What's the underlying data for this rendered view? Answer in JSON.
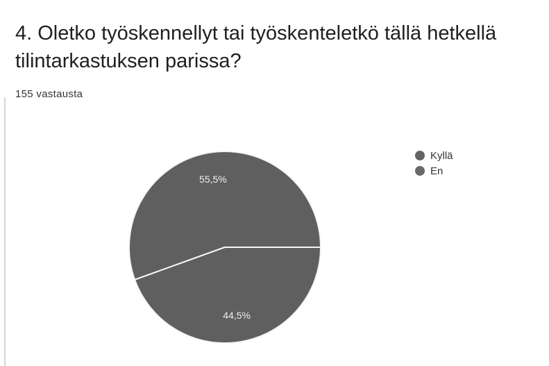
{
  "question": {
    "title": "4. Oletko työskennellyt tai työskenteletkö tällä hetkellä tilintarkastuksen parissa?",
    "response_count": "155 vastausta"
  },
  "colors": {
    "slice_fill": "#5f5f5f",
    "slice_border": "#f4f4f4",
    "label_text": "#f0f0f0",
    "legend_kylla": "#646464",
    "legend_en": "#6a6a6a"
  },
  "chart_data": {
    "type": "pie",
    "title": "",
    "total_responses": 155,
    "categories": [
      "Kyllä",
      "En"
    ],
    "values": [
      55.5,
      44.5
    ],
    "slice_labels": [
      "55,5%",
      "44,5%"
    ],
    "start_direction": "3 o'clock",
    "direction": "counterclockwise",
    "legend_position": "right-top"
  }
}
